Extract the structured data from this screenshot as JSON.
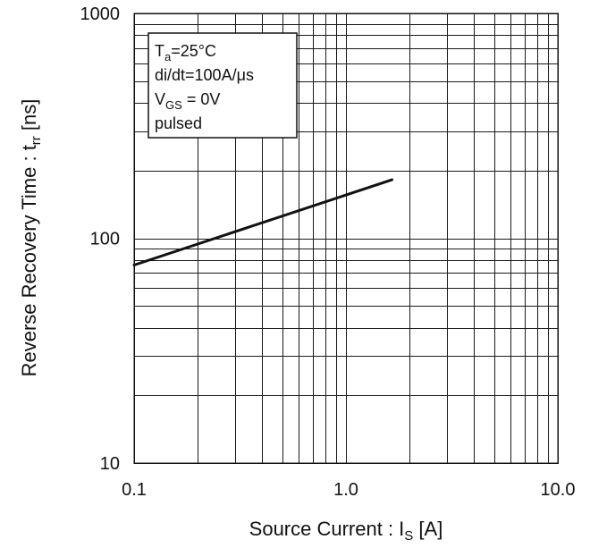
{
  "chart_data": {
    "type": "line",
    "x_scale": "log",
    "y_scale": "log",
    "xlim": [
      0.1,
      10.0
    ],
    "ylim": [
      10,
      1000
    ],
    "grid": true,
    "xlabel": {
      "main": "Source Current : I",
      "sub": "S",
      "tail": " [A]"
    },
    "ylabel": {
      "main": "Reverse Recovery Time : t",
      "sub": "rr",
      "tail": " [ns]"
    },
    "x_ticks": [
      {
        "value": 0.1,
        "label": "0.1"
      },
      {
        "value": 1.0,
        "label": "1.0"
      },
      {
        "value": 10.0,
        "label": "10.0"
      }
    ],
    "y_ticks": [
      {
        "value": 10,
        "label": "10"
      },
      {
        "value": 100,
        "label": "100"
      },
      {
        "value": 1000,
        "label": "1000"
      }
    ],
    "series": [
      {
        "x": [
          0.1,
          1.65
        ],
        "y": [
          76,
          182
        ]
      }
    ],
    "annotation_box": {
      "position": "top-left",
      "lines": [
        {
          "main": "T",
          "sub": "a",
          "tail": "=25°C"
        },
        {
          "main": "di/dt=100A/μs",
          "sub": "",
          "tail": ""
        },
        {
          "main": "V",
          "sub": "GS",
          "tail": " = 0V"
        },
        {
          "main": "pulsed",
          "sub": "",
          "tail": ""
        }
      ]
    }
  }
}
